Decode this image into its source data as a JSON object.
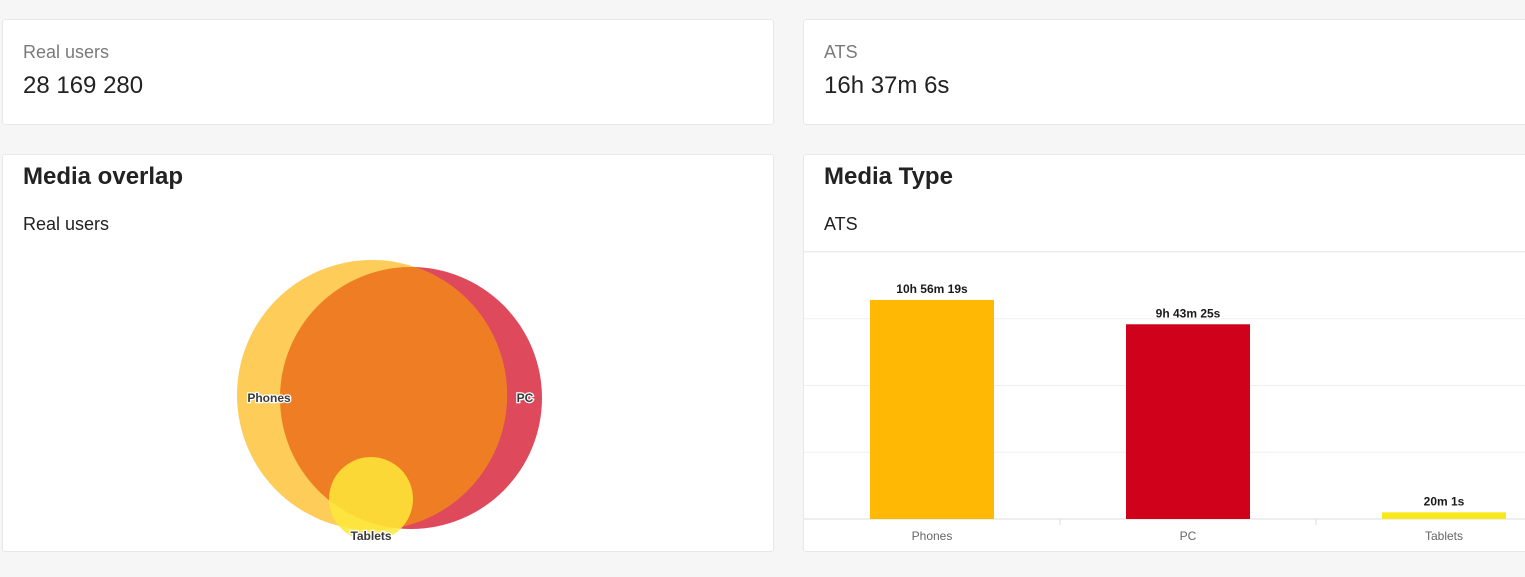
{
  "kpis": [
    {
      "label": "Real users",
      "value": "28 169 280"
    },
    {
      "label": "ATS",
      "value": "16h 37m 6s"
    }
  ],
  "overlap_card": {
    "title": "Media overlap",
    "subtitle": "Real users",
    "sets": [
      {
        "name": "Phones",
        "color": "#fdc33c"
      },
      {
        "name": "PC",
        "color": "#d82a3f"
      },
      {
        "name": "Tablets",
        "color": "#fde83a"
      }
    ],
    "intersection_color": "#ee7d24"
  },
  "media_type_card": {
    "title": "Media Type",
    "subtitle": "ATS"
  },
  "chart_data": {
    "type": "bar",
    "categories": [
      "Phones",
      "PC",
      "Tablets"
    ],
    "values": [
      39379,
      35005,
      1201
    ],
    "data_labels": [
      "10h 56m 19s",
      "9h 43m 25s",
      "20m 1s"
    ],
    "colors": [
      "#ffb804",
      "#d0021b",
      "#f8e81c"
    ],
    "ylim": [
      0,
      48000
    ],
    "grid": true,
    "legend": "none",
    "xlabel": "",
    "ylabel": ""
  }
}
